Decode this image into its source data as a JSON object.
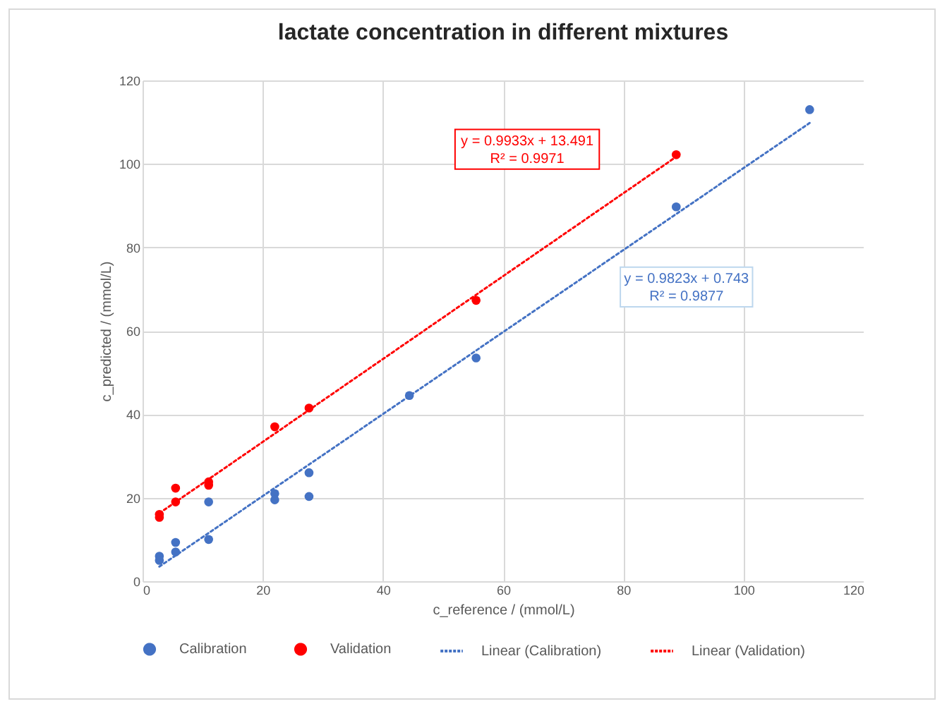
{
  "chart_data": {
    "type": "scatter",
    "title": "lactate concentration in different mixtures",
    "xlabel": "c_reference / (mmol/L)",
    "ylabel": "c_predicted / (mmol/L)",
    "xlim": [
      0,
      120
    ],
    "xticks": [
      0,
      20,
      40,
      60,
      80,
      100,
      120
    ],
    "ylim": [
      0,
      120
    ],
    "yticks": [
      0,
      20,
      40,
      60,
      80,
      100,
      120
    ],
    "grid": true,
    "legend": "bottom",
    "marker": "circle",
    "annotations": [
      "y = 0.9933x + 13.491",
      "R² = 0.9971",
      "y = 0.9823x + 0.743",
      "R² = 0.9877"
    ],
    "series": [
      {
        "name": "Calibration",
        "color": "#4472c4",
        "x": [
          2.8,
          2.8,
          5.5,
          5.5,
          11,
          11,
          22,
          22,
          27.7,
          27.7,
          44.4,
          55.5,
          88.8,
          111
        ],
        "values": [
          6,
          5,
          9.3,
          7,
          19,
          10,
          21,
          19.5,
          26,
          20.3,
          44.5,
          53.5,
          89.7,
          113
        ]
      },
      {
        "name": "Validation",
        "color": "#ff0000",
        "x": [
          2.8,
          2.8,
          5.5,
          5.5,
          11,
          11,
          22,
          27.7,
          55.5,
          88.8
        ],
        "values": [
          16,
          15.3,
          22.3,
          19,
          23.8,
          23,
          37,
          41.5,
          67.3,
          102.2
        ]
      },
      {
        "name": "Linear (Calibration)",
        "type": "line",
        "marker": "none",
        "line_style": "dotted",
        "color": "#4472c4",
        "x": [
          2.8,
          111
        ],
        "values": [
          3.5,
          109.8
        ]
      },
      {
        "name": "Linear (Validation)",
        "type": "line",
        "marker": "none",
        "line_style": "dotted",
        "color": "#ff0000",
        "x": [
          2.8,
          88.8
        ],
        "values": [
          16.3,
          101.7
        ]
      }
    ]
  }
}
